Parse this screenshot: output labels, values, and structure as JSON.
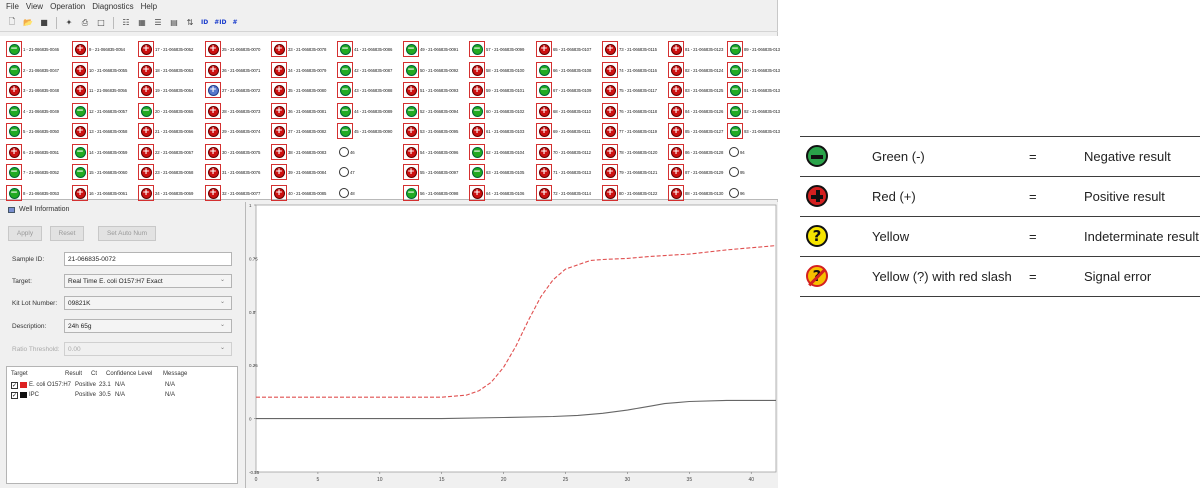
{
  "menu": [
    "File",
    "View",
    "Operation",
    "Diagnostics",
    "Help"
  ],
  "toolbar": {
    "icons": [
      "new-file-icon",
      "open-folder-icon",
      "save-icon",
      "settings-icon",
      "print-icon",
      "print-preview-icon",
      "grid-view-icon",
      "plate-view-icon",
      "list-view-icon",
      "color-view-icon",
      "sort-icon"
    ],
    "text_buttons": [
      "ID",
      "#ID",
      "#"
    ]
  },
  "plate": {
    "wells": [
      {
        "num": "1",
        "id": "21-066835-0046",
        "result": "neg"
      },
      {
        "num": "2",
        "id": "21-066835-0047",
        "result": "neg"
      },
      {
        "num": "3",
        "id": "21-066835-0048",
        "result": "pos"
      },
      {
        "num": "4",
        "id": "21-066835-0049",
        "result": "neg"
      },
      {
        "num": "5",
        "id": "21-066835-0050",
        "result": "neg"
      },
      {
        "num": "6",
        "id": "21-066835-0051",
        "result": "pos"
      },
      {
        "num": "7",
        "id": "21-066835-0052",
        "result": "neg"
      },
      {
        "num": "8",
        "id": "21-066835-0053",
        "result": "neg"
      },
      {
        "num": "9",
        "id": "21-066835-0054",
        "result": "pos"
      },
      {
        "num": "10",
        "id": "21-066835-0055",
        "result": "pos"
      },
      {
        "num": "11",
        "id": "21-066835-0056",
        "result": "pos"
      },
      {
        "num": "12",
        "id": "21-066835-0057",
        "result": "neg"
      },
      {
        "num": "13",
        "id": "21-066835-0058",
        "result": "pos"
      },
      {
        "num": "14",
        "id": "21-066835-0059",
        "result": "neg"
      },
      {
        "num": "15",
        "id": "21-066835-0060",
        "result": "neg"
      },
      {
        "num": "16",
        "id": "21-066835-0061",
        "result": "pos"
      },
      {
        "num": "17",
        "id": "21-066835-0062",
        "result": "pos"
      },
      {
        "num": "18",
        "id": "21-066835-0063",
        "result": "pos"
      },
      {
        "num": "19",
        "id": "21-066835-0064",
        "result": "pos"
      },
      {
        "num": "20",
        "id": "21-066835-0065",
        "result": "neg"
      },
      {
        "num": "21",
        "id": "21-066835-0066",
        "result": "pos"
      },
      {
        "num": "22",
        "id": "21-066835-0067",
        "result": "pos"
      },
      {
        "num": "23",
        "id": "21-066835-0068",
        "result": "pos"
      },
      {
        "num": "24",
        "id": "21-066835-0069",
        "result": "pos"
      },
      {
        "num": "25",
        "id": "21-066835-0070",
        "result": "pos"
      },
      {
        "num": "26",
        "id": "21-066835-0071",
        "result": "pos"
      },
      {
        "num": "27",
        "id": "21-066835-0072",
        "result": "sel"
      },
      {
        "num": "28",
        "id": "21-066835-0073",
        "result": "pos"
      },
      {
        "num": "29",
        "id": "21-066835-0074",
        "result": "pos"
      },
      {
        "num": "30",
        "id": "21-066835-0075",
        "result": "pos"
      },
      {
        "num": "31",
        "id": "21-066835-0076",
        "result": "pos"
      },
      {
        "num": "32",
        "id": "21-066835-0077",
        "result": "pos"
      },
      {
        "num": "33",
        "id": "21-066835-0078",
        "result": "pos"
      },
      {
        "num": "34",
        "id": "21-066835-0079",
        "result": "pos"
      },
      {
        "num": "35",
        "id": "21-066835-0080",
        "result": "pos"
      },
      {
        "num": "36",
        "id": "21-066835-0081",
        "result": "pos"
      },
      {
        "num": "37",
        "id": "21-066835-0082",
        "result": "pos"
      },
      {
        "num": "38",
        "id": "21-066835-0083",
        "result": "pos"
      },
      {
        "num": "39",
        "id": "21-066835-0084",
        "result": "pos"
      },
      {
        "num": "40",
        "id": "21-066835-0085",
        "result": "pos"
      },
      {
        "num": "41",
        "id": "21-066835-0086",
        "result": "neg"
      },
      {
        "num": "42",
        "id": "21-066835-0087",
        "result": "neg"
      },
      {
        "num": "43",
        "id": "21-066835-0088",
        "result": "neg"
      },
      {
        "num": "44",
        "id": "21-066835-0089",
        "result": "neg"
      },
      {
        "num": "45",
        "id": "21-066835-0090",
        "result": "neg"
      },
      {
        "num": "46",
        "id": "",
        "result": "empty"
      },
      {
        "num": "47",
        "id": "",
        "result": "empty"
      },
      {
        "num": "48",
        "id": "",
        "result": "empty"
      },
      {
        "num": "49",
        "id": "21-066835-0091",
        "result": "neg"
      },
      {
        "num": "50",
        "id": "21-066835-0092",
        "result": "neg"
      },
      {
        "num": "51",
        "id": "21-066835-0093",
        "result": "pos"
      },
      {
        "num": "52",
        "id": "21-066835-0094",
        "result": "neg"
      },
      {
        "num": "53",
        "id": "21-066835-0095",
        "result": "pos"
      },
      {
        "num": "54",
        "id": "21-066835-0096",
        "result": "pos"
      },
      {
        "num": "55",
        "id": "21-066835-0097",
        "result": "pos"
      },
      {
        "num": "56",
        "id": "21-066835-0098",
        "result": "neg"
      },
      {
        "num": "57",
        "id": "21-066835-0099",
        "result": "neg"
      },
      {
        "num": "58",
        "id": "21-066835-0100",
        "result": "pos"
      },
      {
        "num": "59",
        "id": "21-066835-0101",
        "result": "pos"
      },
      {
        "num": "60",
        "id": "21-066835-0102",
        "result": "neg"
      },
      {
        "num": "61",
        "id": "21-066835-0103",
        "result": "pos"
      },
      {
        "num": "62",
        "id": "21-066835-0104",
        "result": "neg"
      },
      {
        "num": "63",
        "id": "21-066835-0105",
        "result": "neg"
      },
      {
        "num": "64",
        "id": "21-066835-0106",
        "result": "pos"
      },
      {
        "num": "65",
        "id": "21-066835-0107",
        "result": "pos"
      },
      {
        "num": "66",
        "id": "21-066835-0108",
        "result": "neg"
      },
      {
        "num": "67",
        "id": "21-066835-0109",
        "result": "neg"
      },
      {
        "num": "68",
        "id": "21-066835-0110",
        "result": "pos"
      },
      {
        "num": "69",
        "id": "21-066835-0111",
        "result": "pos"
      },
      {
        "num": "70",
        "id": "21-066835-0112",
        "result": "pos"
      },
      {
        "num": "71",
        "id": "21-066835-0113",
        "result": "pos"
      },
      {
        "num": "72",
        "id": "21-066835-0114",
        "result": "pos"
      },
      {
        "num": "73",
        "id": "21-066835-0115",
        "result": "pos"
      },
      {
        "num": "74",
        "id": "21-066835-0116",
        "result": "pos"
      },
      {
        "num": "75",
        "id": "21-066835-0117",
        "result": "pos"
      },
      {
        "num": "76",
        "id": "21-066835-0118",
        "result": "pos"
      },
      {
        "num": "77",
        "id": "21-066835-0119",
        "result": "pos"
      },
      {
        "num": "78",
        "id": "21-066835-0120",
        "result": "pos"
      },
      {
        "num": "79",
        "id": "21-066835-0121",
        "result": "pos"
      },
      {
        "num": "80",
        "id": "21-066835-0122",
        "result": "pos"
      },
      {
        "num": "81",
        "id": "21-066835-0123",
        "result": "pos"
      },
      {
        "num": "82",
        "id": "21-066835-0124",
        "result": "pos"
      },
      {
        "num": "83",
        "id": "21-066835-0125",
        "result": "pos"
      },
      {
        "num": "84",
        "id": "21-066835-0126",
        "result": "pos"
      },
      {
        "num": "85",
        "id": "21-066835-0127",
        "result": "pos"
      },
      {
        "num": "86",
        "id": "21-066835-0128",
        "result": "pos"
      },
      {
        "num": "87",
        "id": "21-066835-0129",
        "result": "pos"
      },
      {
        "num": "88",
        "id": "21-066835-0130",
        "result": "pos"
      },
      {
        "num": "89",
        "id": "21-066835-013",
        "result": "neg"
      },
      {
        "num": "90",
        "id": "21-066835-013",
        "result": "neg"
      },
      {
        "num": "91",
        "id": "21-066835-013",
        "result": "neg"
      },
      {
        "num": "92",
        "id": "21-066835-013",
        "result": "neg"
      },
      {
        "num": "93",
        "id": "21-066835-013",
        "result": "neg"
      },
      {
        "num": "94",
        "id": "",
        "result": "empty"
      },
      {
        "num": "95",
        "id": "",
        "result": "empty"
      },
      {
        "num": "96",
        "id": "",
        "result": "empty"
      }
    ]
  },
  "well_info": {
    "title": "Well Information",
    "buttons": {
      "apply": "Apply",
      "reset": "Reset",
      "set_auto_num": "Set Auto Num"
    },
    "sample_id": {
      "label": "Sample ID:",
      "value": "21-066835-0072"
    },
    "target": {
      "label": "Target:",
      "value": "Real Time E. coli O157:H7 Exact"
    },
    "kit_lot": {
      "label": "Kit Lot Number:",
      "value": "09821K"
    },
    "description": {
      "label": "Description:",
      "value": "24h 65g"
    },
    "ratio_threshold": {
      "label": "Ratio Threshold:",
      "value": "0.00"
    },
    "table": {
      "headers": [
        "Target",
        "Result",
        "Ct",
        "Confidence Level",
        "Message"
      ],
      "rows": [
        {
          "target": "E. coli O157:H7",
          "result": "Positive",
          "ct": "23.1",
          "confidence": "N/A",
          "message": "N/A",
          "color": "#dd2222"
        },
        {
          "target": "IPC",
          "result": "Positive",
          "ct": "30.5",
          "confidence": "N/A",
          "message": "N/A",
          "color": "#111111"
        }
      ]
    }
  },
  "chart_data": {
    "type": "line",
    "xlim": [
      0,
      42
    ],
    "ylim": [
      -0.25,
      1
    ],
    "x_ticks": [
      "0",
      "5",
      "10",
      "15",
      "20",
      "25",
      "30",
      "35",
      "40"
    ],
    "y_ticks": [
      "-0.25",
      "0",
      "0.25",
      "0.5",
      "0.75",
      "1"
    ],
    "series": [
      {
        "color": "#e05050",
        "dash": true,
        "x": [
          0,
          5,
          10,
          15,
          17,
          18,
          19,
          20,
          21,
          22,
          23,
          24,
          25,
          26,
          27,
          28,
          30,
          32,
          35,
          38,
          42
        ],
        "y": [
          0.1,
          0.1,
          0.1,
          0.1,
          0.11,
          0.13,
          0.17,
          0.24,
          0.34,
          0.46,
          0.57,
          0.65,
          0.7,
          0.72,
          0.74,
          0.745,
          0.75,
          0.76,
          0.77,
          0.79,
          0.81
        ]
      },
      {
        "color": "#666666",
        "dash": false,
        "x": [
          0,
          5,
          10,
          15,
          20,
          24,
          26,
          28,
          30,
          31,
          32,
          33,
          34,
          35,
          38,
          42
        ],
        "y": [
          0.0,
          0.0,
          0.0,
          0.0,
          0.005,
          0.01,
          0.015,
          0.025,
          0.04,
          0.05,
          0.06,
          0.07,
          0.075,
          0.08,
          0.085,
          0.085
        ]
      }
    ]
  },
  "legend": [
    {
      "icon": "green-negative-icon",
      "name": "Green (-)",
      "eq": "=",
      "meaning": "Negative result",
      "fill": "#2aa34a",
      "glyph": "−",
      "slash": false
    },
    {
      "icon": "red-positive-icon",
      "name": "Red (+)",
      "eq": "=",
      "meaning": "Positive result",
      "fill": "#d42020",
      "glyph": "+",
      "slash": false
    },
    {
      "icon": "yellow-question-icon",
      "name": "Yellow",
      "eq": "=",
      "meaning": "Indeterminate result",
      "fill": "#f6e500",
      "glyph": "?",
      "slash": false
    },
    {
      "icon": "yellow-slash-icon",
      "name": "Yellow (?) with red slash",
      "eq": "=",
      "meaning": "Signal error",
      "fill": "#f6c000",
      "glyph": "?",
      "slash": true
    }
  ]
}
